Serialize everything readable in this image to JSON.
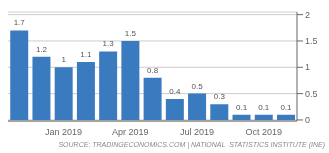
{
  "chart_data": {
    "type": "bar",
    "categories": [
      null,
      null,
      "Jan 2019",
      null,
      null,
      "Apr 2019",
      null,
      null,
      "Jul 2019",
      null,
      null,
      "Oct 2019",
      null
    ],
    "values": [
      1.7,
      1.2,
      1.0,
      1.1,
      1.3,
      1.5,
      0.8,
      0.4,
      0.5,
      0.3,
      0.1,
      0.1,
      0.1
    ],
    "color": "#3a7bbf",
    "ylim": [
      -0.02,
      2.05
    ],
    "yticks": [
      0,
      0.5,
      1.0,
      1.5,
      2.0
    ],
    "grid": true,
    "data_labels": true,
    "annotations": [
      "SOURCE: TRADINGECONOMICS.COM | NATIONAL  STATISTICS INSTITUTE (INE)"
    ]
  }
}
